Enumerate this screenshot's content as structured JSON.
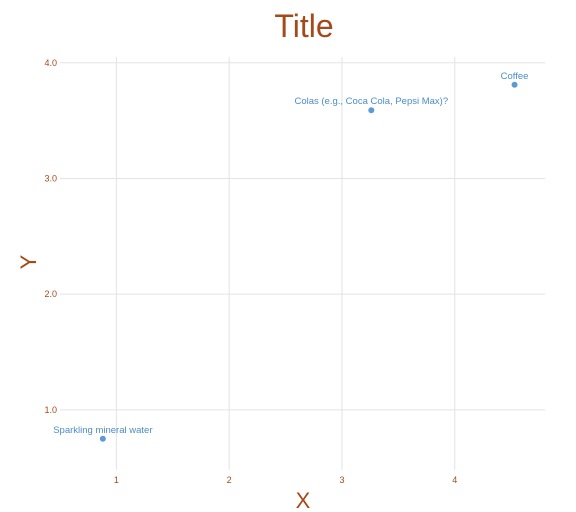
{
  "chart_data": {
    "type": "scatter",
    "title": "Title",
    "xlabel": "X",
    "ylabel": "Y",
    "xlim": [
      0.5,
      4.8
    ],
    "ylim": [
      0.48,
      4.05
    ],
    "xticks": [
      1,
      2,
      3,
      4
    ],
    "yticks": [
      1.0,
      2.0,
      3.0,
      4.0
    ],
    "xtick_labels": [
      "1",
      "2",
      "3",
      "4"
    ],
    "ytick_labels": [
      "1.0",
      "2.0",
      "3.0",
      "4.0"
    ],
    "grid": true,
    "points": [
      {
        "x": 0.88,
        "y": 0.75,
        "label": "Sparkling mineral water"
      },
      {
        "x": 3.26,
        "y": 3.59,
        "label": "Colas (e.g., Coca Cola, Pepsi Max)?"
      },
      {
        "x": 4.53,
        "y": 3.81,
        "label": "Coffee"
      }
    ],
    "colors": {
      "title": "#a5491a",
      "axis_title": "#a5491a",
      "tick_label": "#a5491a",
      "point": "#5b9bd5",
      "point_label": "#4a8cc9",
      "grid": "#e3e3e3"
    }
  }
}
